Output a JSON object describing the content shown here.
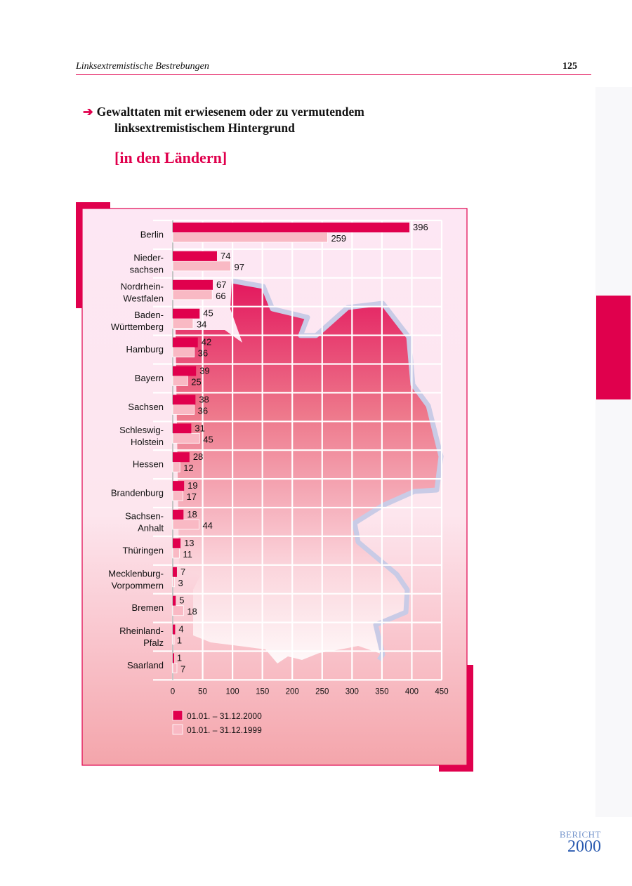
{
  "header": {
    "title": "Linksextremistische Bestrebungen",
    "page_number": "125"
  },
  "heading": {
    "arrow": "➔",
    "line1": "Gewalttaten mit erwiesenem oder zu vermutendem",
    "line2": "linksextremistischem Hintergrund",
    "sub": "[in den Ländern]"
  },
  "colors": {
    "accent": "#e0004d",
    "series_2000": "#e0004d",
    "series_1999": "#f9b9c4",
    "grid": "#ffffff",
    "map_outline": "#c9cbe6"
  },
  "chart_data": {
    "type": "bar",
    "orientation": "horizontal",
    "categories": [
      [
        "Berlin"
      ],
      [
        "Nieder-",
        "sachsen"
      ],
      [
        "Nordrhein-",
        "Westfalen"
      ],
      [
        "Baden-",
        "Württemberg"
      ],
      [
        "Hamburg"
      ],
      [
        "Bayern"
      ],
      [
        "Sachsen"
      ],
      [
        "Schleswig-",
        "Holstein"
      ],
      [
        "Hessen"
      ],
      [
        "Brandenburg"
      ],
      [
        "Sachsen-",
        "Anhalt"
      ],
      [
        "Thüringen"
      ],
      [
        "Mecklenburg-",
        "Vorpommern"
      ],
      [
        "Bremen"
      ],
      [
        "Rheinland-",
        "Pfalz"
      ],
      [
        "Saarland"
      ]
    ],
    "series": [
      {
        "name": "01.01. – 31.12.2000",
        "values": [
          396,
          74,
          67,
          45,
          42,
          39,
          38,
          31,
          28,
          19,
          18,
          13,
          7,
          5,
          4,
          1
        ]
      },
      {
        "name": "01.01. – 31.12.1999",
        "values": [
          259,
          97,
          66,
          34,
          36,
          25,
          36,
          45,
          12,
          17,
          44,
          11,
          3,
          18,
          1,
          7
        ]
      }
    ],
    "xlim": [
      0,
      450
    ],
    "xticks": [
      0,
      50,
      100,
      150,
      200,
      250,
      300,
      350,
      400,
      450
    ],
    "grid": true,
    "legend_position": "bottom-left"
  },
  "footer": {
    "brand_word": "BERICHT",
    "brand_year": "2000"
  }
}
